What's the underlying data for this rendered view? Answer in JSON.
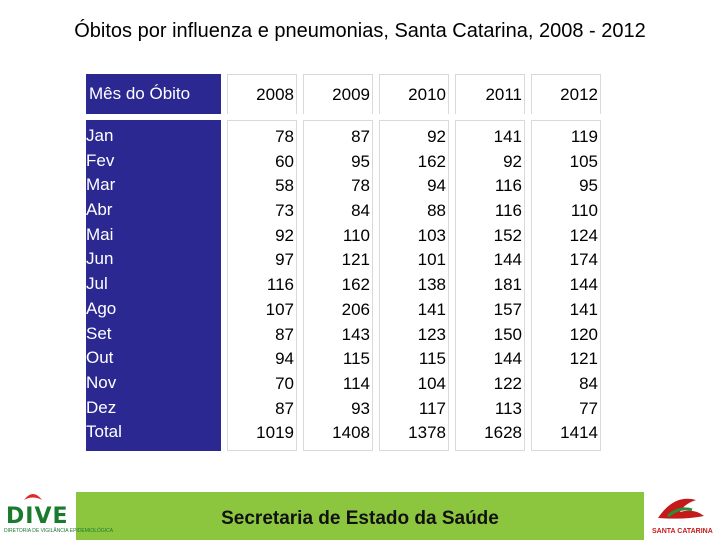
{
  "title": "Óbitos por influenza e pneumonias, Santa Catarina, 2008 - 2012",
  "table": {
    "month_header": "Mês do Óbito",
    "years": [
      "2008",
      "2009",
      "2010",
      "2011",
      "2012"
    ],
    "months": [
      "Jan",
      "Fev",
      "Mar",
      "Abr",
      "Mai",
      "Jun",
      "Jul",
      "Ago",
      "Set",
      "Out",
      "Nov",
      "Dez",
      "Total"
    ],
    "values": [
      [
        "78",
        "60",
        "58",
        "73",
        "92",
        "97",
        "116",
        "107",
        "87",
        "94",
        "70",
        "87",
        "1019"
      ],
      [
        "87",
        "95",
        "78",
        "84",
        "110",
        "121",
        "162",
        "206",
        "143",
        "115",
        "114",
        "93",
        "1408"
      ],
      [
        "92",
        "162",
        "94",
        "88",
        "103",
        "101",
        "138",
        "141",
        "123",
        "115",
        "104",
        "117",
        "1378"
      ],
      [
        "141",
        "92",
        "116",
        "116",
        "152",
        "144",
        "181",
        "157",
        "150",
        "144",
        "122",
        "113",
        "1628"
      ],
      [
        "119",
        "105",
        "95",
        "110",
        "124",
        "174",
        "144",
        "141",
        "120",
        "121",
        "84",
        "77",
        "1414"
      ]
    ]
  },
  "footer": {
    "text": "Secretaria de Estado da Saúde",
    "left_logo_text": "DIVE",
    "left_logo_sub": "DIRETORIA DE VIGILÂNCIA EPIDEMIOLÓGICA",
    "right_logo_text": "SANTA CATARINA",
    "band_color": "#8cc63f"
  },
  "colors": {
    "month_column_bg": "#2c2891",
    "month_column_text": "#ffffff"
  }
}
